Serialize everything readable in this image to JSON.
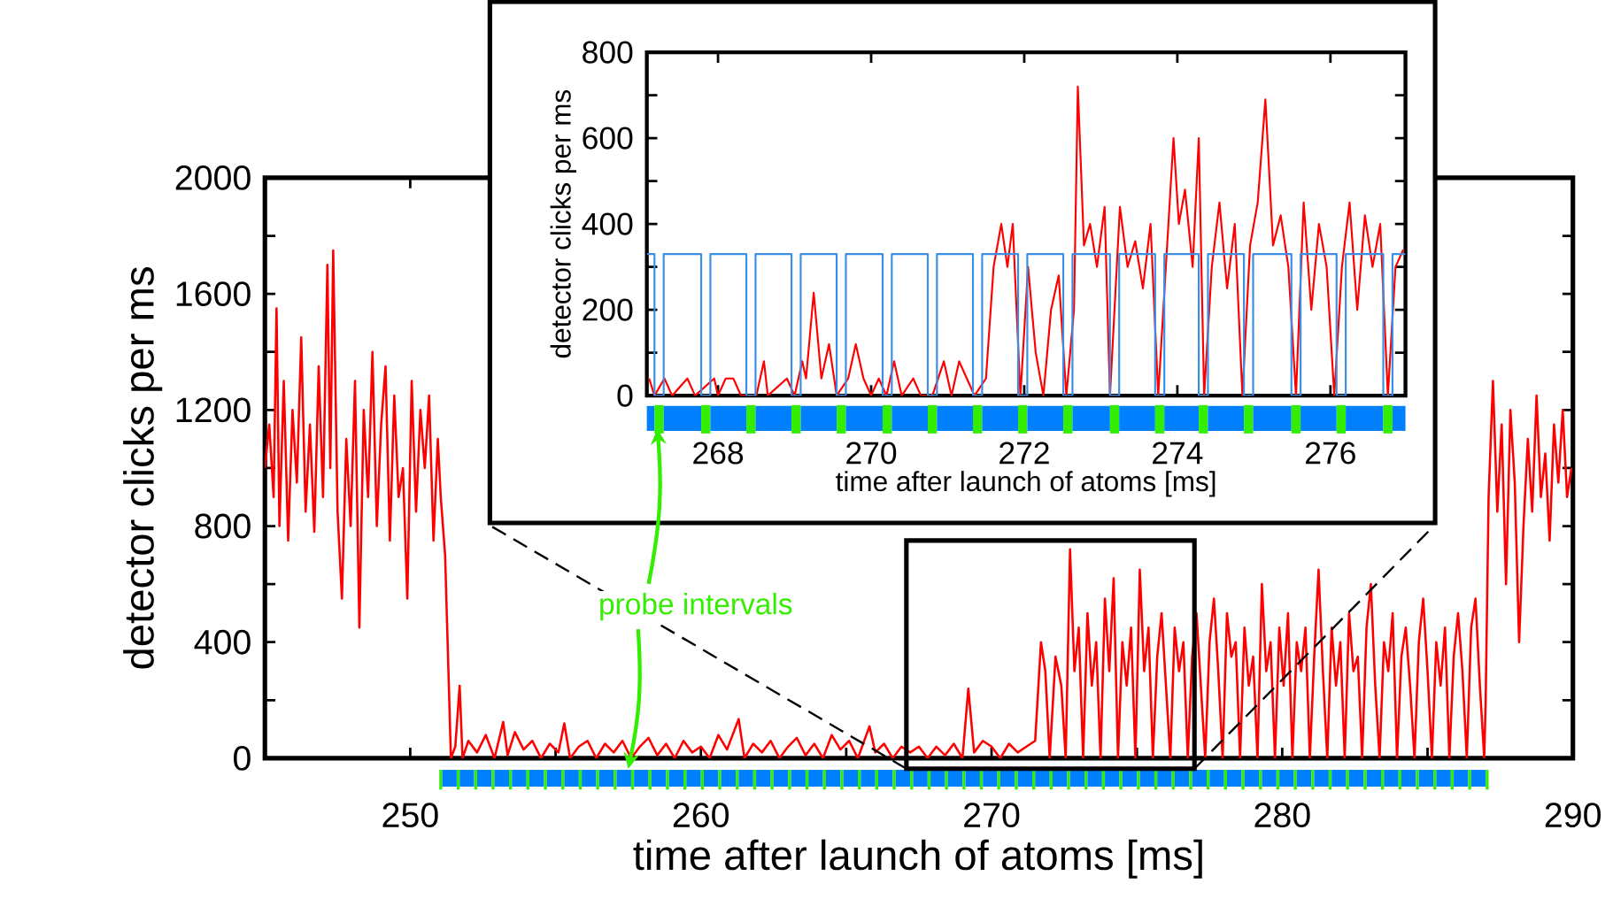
{
  "chart_data": [
    {
      "type": "line",
      "xlabel": "time after launch of atoms [ms]",
      "ylabel": "detector clicks per ms",
      "xlim": [
        245,
        290
      ],
      "ylim": [
        0,
        2000
      ],
      "xticks": [
        250,
        {
          "value": 255,
          "label": null
        },
        260,
        {
          "value": 265,
          "label": null
        },
        270,
        {
          "value": 275,
          "label": null
        },
        280,
        {
          "value": 285,
          "label": null
        },
        290
      ],
      "yticks": [
        0,
        {
          "value": 200,
          "label": null
        },
        400,
        {
          "value": 600,
          "label": null
        },
        800,
        {
          "value": 1000,
          "label": null
        },
        1200,
        {
          "value": 1400,
          "label": null
        },
        1600,
        {
          "value": 1800,
          "label": null
        },
        2000
      ],
      "annotations": [
        {
          "text": "probe intervals",
          "x": 257.5,
          "y": 0
        }
      ],
      "series": [
        {
          "color": "#ff0000",
          "x": [
            245.0,
            245.15,
            245.3,
            245.4,
            245.5,
            245.65,
            245.8,
            245.95,
            246.1,
            246.25,
            246.4,
            246.55,
            246.7,
            246.85,
            247.0,
            247.15,
            247.25,
            247.35,
            247.5,
            247.65,
            247.8,
            247.95,
            248.1,
            248.25,
            248.4,
            248.55,
            248.7,
            248.85,
            249.0,
            249.15,
            249.3,
            249.45,
            249.6,
            249.75,
            249.9,
            250.05,
            250.2,
            250.35,
            250.5,
            250.65,
            250.8,
            250.95,
            251.05,
            251.2,
            251.3,
            251.4,
            251.55,
            251.7,
            251.8,
            252.0,
            252.3,
            252.6,
            252.9,
            253.2,
            253.35,
            253.6,
            253.9,
            254.2,
            254.5,
            254.8,
            255.1,
            255.3,
            255.5,
            255.8,
            256.1,
            256.4,
            256.7,
            257.0,
            257.3,
            257.6,
            257.9,
            258.2,
            258.5,
            258.8,
            259.1,
            259.4,
            259.7,
            260.0,
            260.3,
            260.6,
            260.9,
            261.3,
            261.5,
            261.8,
            262.1,
            262.4,
            262.7,
            263.0,
            263.3,
            263.6,
            263.9,
            264.2,
            264.5,
            264.8,
            265.1,
            265.4,
            265.8,
            266.0,
            266.3,
            266.6,
            266.9,
            267.2,
            267.5,
            267.8,
            268.1,
            268.4,
            268.7,
            269.0,
            269.2,
            269.4,
            269.7,
            270.0,
            270.3,
            270.6,
            270.9,
            271.2,
            271.5,
            271.7,
            271.85,
            272.0,
            272.2,
            272.4,
            272.55,
            272.7,
            272.85,
            273.0,
            273.15,
            273.3,
            273.45,
            273.6,
            273.75,
            273.9,
            274.05,
            274.2,
            274.35,
            274.5,
            274.65,
            274.8,
            274.95,
            275.1,
            275.25,
            275.4,
            275.55,
            275.7,
            275.85,
            276.0,
            276.15,
            276.3,
            276.45,
            276.6,
            276.75,
            276.9,
            277.05,
            277.2,
            277.35,
            277.5,
            277.65,
            277.8,
            277.95,
            278.1,
            278.25,
            278.4,
            278.55,
            278.7,
            278.85,
            279.0,
            279.15,
            279.3,
            279.45,
            279.6,
            279.75,
            279.9,
            280.05,
            280.2,
            280.35,
            280.5,
            280.65,
            280.8,
            280.95,
            281.1,
            281.25,
            281.4,
            281.55,
            281.7,
            281.85,
            282.0,
            282.15,
            282.3,
            282.45,
            282.6,
            282.75,
            282.9,
            283.05,
            283.2,
            283.35,
            283.5,
            283.65,
            283.8,
            283.95,
            284.1,
            284.25,
            284.4,
            284.55,
            284.7,
            284.85,
            285.0,
            285.15,
            285.3,
            285.45,
            285.6,
            285.75,
            285.9,
            286.05,
            286.2,
            286.35,
            286.5,
            286.65,
            286.8,
            286.95,
            287.0,
            287.1,
            287.25,
            287.4,
            287.55,
            287.7,
            287.85,
            288.0,
            288.15,
            288.3,
            288.45,
            288.6,
            288.75,
            288.9,
            289.05,
            289.2,
            289.35,
            289.5,
            289.65,
            289.8,
            289.95
          ],
          "values": [
            1000,
            1150,
            900,
            1550,
            800,
            1300,
            750,
            1200,
            950,
            1450,
            850,
            1150,
            780,
            1350,
            900,
            1700,
            1000,
            1750,
            850,
            550,
            1100,
            800,
            1300,
            450,
            1200,
            900,
            1400,
            800,
            1150,
            1350,
            750,
            1250,
            900,
            1000,
            550,
            1300,
            850,
            1200,
            1000,
            1250,
            750,
            1100,
            900,
            700,
            350,
            0,
            40,
            250,
            0,
            60,
            20,
            80,
            0,
            125,
            10,
            90,
            30,
            60,
            0,
            50,
            20,
            120,
            0,
            40,
            60,
            0,
            50,
            20,
            60,
            0,
            40,
            70,
            10,
            50,
            0,
            60,
            20,
            40,
            0,
            80,
            30,
            135,
            0,
            50,
            20,
            60,
            0,
            40,
            70,
            10,
            50,
            0,
            80,
            30,
            60,
            0,
            110,
            20,
            50,
            0,
            40,
            20,
            40,
            0,
            40,
            10,
            50,
            0,
            240,
            20,
            60,
            40,
            0,
            50,
            20,
            40,
            60,
            400,
            300,
            0,
            350,
            250,
            0,
            720,
            300,
            450,
            0,
            500,
            250,
            400,
            0,
            550,
            300,
            620,
            0,
            400,
            250,
            450,
            0,
            650,
            300,
            450,
            0,
            350,
            500,
            250,
            0,
            450,
            300,
            400,
            0,
            350,
            500,
            250,
            0,
            400,
            550,
            300,
            0,
            500,
            350,
            400,
            0,
            450,
            250,
            350,
            0,
            600,
            300,
            400,
            0,
            450,
            250,
            500,
            0,
            400,
            300,
            450,
            0,
            350,
            650,
            300,
            0,
            450,
            250,
            400,
            0,
            500,
            300,
            350,
            0,
            450,
            600,
            250,
            0,
            400,
            300,
            500,
            0,
            350,
            450,
            250,
            0,
            400,
            550,
            300,
            0,
            400,
            250,
            450,
            0,
            350,
            500,
            300,
            0,
            450,
            550,
            250,
            0,
            200,
            900,
            1300,
            850,
            1150,
            600,
            1200,
            950,
            400,
            800,
            1100,
            850,
            1250,
            900,
            1050,
            750,
            1150,
            950,
            1200,
            900,
            1000
          ]
        }
      ]
    },
    {
      "type": "line",
      "xlabel": "time after launch of atoms [ms]",
      "ylabel": "detector clicks per ms",
      "xlim": [
        267.07,
        276.98
      ],
      "ylim": [
        0,
        800
      ],
      "xticks": [
        268,
        270,
        272,
        274,
        276
      ],
      "yticks": [
        0,
        {
          "value": 100,
          "label": null
        },
        200,
        {
          "value": 300,
          "label": null
        },
        400,
        {
          "value": 500,
          "label": null
        },
        600,
        {
          "value": 700,
          "label": null
        },
        800
      ],
      "series": [
        {
          "color": "#ff0000",
          "x": [
            267.1,
            267.17,
            267.3,
            267.4,
            267.6,
            267.7,
            267.95,
            268.0,
            268.1,
            268.2,
            268.3,
            268.5,
            268.6,
            268.65,
            268.9,
            269.0,
            269.1,
            269.15,
            269.25,
            269.35,
            269.45,
            269.55,
            269.7,
            269.8,
            269.9,
            270.0,
            270.1,
            270.2,
            270.3,
            270.4,
            270.55,
            270.65,
            270.8,
            270.95,
            271.05,
            271.15,
            271.25,
            271.35,
            271.5,
            271.6,
            271.7,
            271.78,
            271.85,
            271.95,
            272.05,
            272.15,
            272.25,
            272.35,
            272.45,
            272.55,
            272.65,
            272.7,
            272.78,
            272.86,
            272.95,
            273.05,
            273.12,
            273.25,
            273.35,
            273.45,
            273.55,
            273.65,
            273.75,
            273.85,
            273.95,
            274.02,
            274.1,
            274.2,
            274.28,
            274.35,
            274.45,
            274.55,
            274.65,
            274.75,
            274.85,
            274.95,
            275.05,
            275.15,
            275.25,
            275.35,
            275.45,
            275.55,
            275.65,
            275.75,
            275.85,
            275.95,
            276.05,
            276.15,
            276.25,
            276.35,
            276.45,
            276.55,
            276.65,
            276.75,
            276.85,
            276.95
          ],
          "values": [
            40,
            0,
            40,
            0,
            40,
            0,
            40,
            0,
            40,
            40,
            0,
            0,
            80,
            0,
            40,
            0,
            80,
            40,
            240,
            40,
            120,
            0,
            40,
            120,
            40,
            0,
            40,
            0,
            80,
            0,
            40,
            0,
            0,
            80,
            0,
            80,
            40,
            0,
            40,
            300,
            400,
            300,
            400,
            0,
            300,
            100,
            0,
            200,
            280,
            0,
            200,
            720,
            350,
            400,
            300,
            440,
            0,
            440,
            300,
            360,
            250,
            400,
            0,
            300,
            600,
            400,
            480,
            300,
            600,
            0,
            300,
            450,
            250,
            400,
            0,
            350,
            450,
            690,
            350,
            420,
            300,
            0,
            450,
            200,
            400,
            300,
            0,
            300,
            450,
            200,
            420,
            300,
            400,
            0,
            300,
            340
          ]
        },
        {
          "type": "step",
          "color": "#3a8ee6",
          "x": [
            267.07,
            267.17,
            267.29,
            267.78,
            267.9,
            268.37,
            268.49,
            268.96,
            269.08,
            269.55,
            269.67,
            270.15,
            270.27,
            270.74,
            270.86,
            271.33,
            271.45,
            271.92,
            272.04,
            272.51,
            272.63,
            273.12,
            273.24,
            273.71,
            273.83,
            274.28,
            274.4,
            274.87,
            274.99,
            275.49,
            275.61,
            276.08,
            276.2,
            276.69,
            276.81,
            276.98
          ],
          "values": [
            330,
            0,
            330,
            0,
            330,
            0,
            330,
            0,
            330,
            0,
            330,
            0,
            330,
            0,
            330,
            0,
            330,
            0,
            330,
            0,
            330,
            0,
            330,
            0,
            330,
            0,
            330,
            0,
            330,
            0,
            330,
            0,
            330,
            0,
            330,
            330
          ]
        }
      ]
    }
  ]
}
